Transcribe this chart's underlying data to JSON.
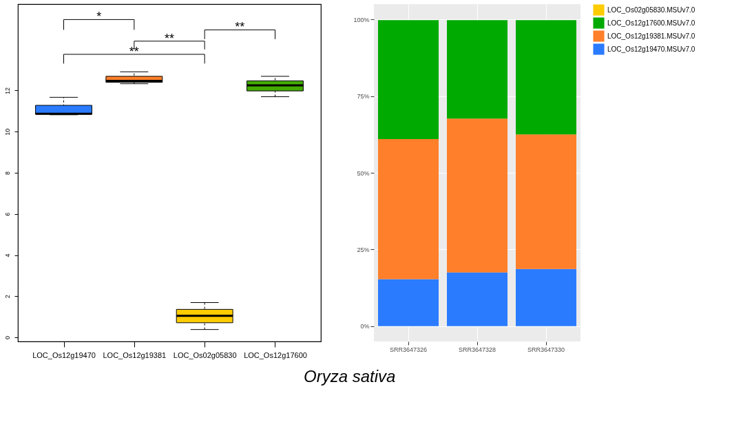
{
  "chart_data": [
    {
      "type": "box",
      "categories": [
        "LOC_Os12g19470",
        "LOC_Os12g19381",
        "LOC_Os02g05830",
        "LOC_Os12g17600"
      ],
      "boxes": [
        {
          "low": 10.82,
          "q1": 10.85,
          "median": 10.87,
          "q3": 11.28,
          "high": 11.67
        },
        {
          "low": 12.33,
          "q1": 12.4,
          "median": 12.47,
          "q3": 12.69,
          "high": 12.91
        },
        {
          "low": 0.38,
          "q1": 0.71,
          "median": 1.05,
          "q3": 1.36,
          "high": 1.69
        },
        {
          "low": 11.7,
          "q1": 11.98,
          "median": 12.25,
          "q3": 12.47,
          "high": 12.69
        }
      ],
      "colors": [
        "#2b7bff",
        "#ff7f2a",
        "#ffcc00",
        "#44aa00"
      ],
      "ylim": [
        -0.2,
        16.2
      ],
      "yticks": [
        0,
        2,
        4,
        6,
        8,
        10,
        12
      ],
      "grid": false,
      "annotations": [
        "*",
        "**",
        "**",
        "**",
        "Oryza sativa"
      ]
    },
    {
      "type": "bar",
      "stacked": true,
      "categories": [
        "SRR3647326",
        "SRR3647328",
        "SRR3647330"
      ],
      "series": [
        {
          "name": "LOC_Os12g19470.MSUv7.0",
          "color": "#2b7bff",
          "values": [
            15.3,
            17.5,
            18.6
          ]
        },
        {
          "name": "LOC_Os12g19381.MSUv7.0",
          "color": "#ff7f2a",
          "values": [
            45.7,
            50.2,
            43.9
          ]
        },
        {
          "name": "LOC_Os12g17600.MSUv7.0",
          "color": "#00aa00",
          "values": [
            38.8,
            32.1,
            37.3
          ]
        },
        {
          "name": "LOC_Os02g05830.MSUv7.0",
          "color": "#ffcc00",
          "values": [
            null,
            null,
            null
          ]
        }
      ],
      "ylim": [
        -5,
        105
      ],
      "yticks": [
        {
          "value": 0,
          "label": "0%"
        },
        {
          "value": 25,
          "label": "25%"
        },
        {
          "value": 50,
          "label": "50%"
        },
        {
          "value": 75,
          "label": "75%"
        },
        {
          "value": 100,
          "label": "100%"
        }
      ],
      "grid": true,
      "legend": "right"
    }
  ]
}
